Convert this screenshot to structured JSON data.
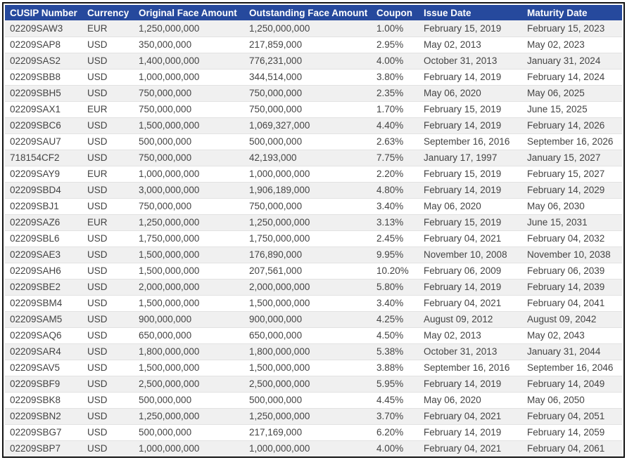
{
  "colors": {
    "header_bg": "#26499D",
    "header_text": "#FFFFFF",
    "row_bg": "#FFFFFF",
    "row_alt_bg": "#F0F0F0",
    "row_border": "#E2E2E2",
    "body_text": "#444444",
    "outer_border": "#141414"
  },
  "table": {
    "columns": [
      {
        "key": "cusip",
        "label": "CUSIP Number"
      },
      {
        "key": "currency",
        "label": "Currency"
      },
      {
        "key": "original_face",
        "label": "Original Face Amount"
      },
      {
        "key": "outstanding_face",
        "label": "Outstanding Face Amount"
      },
      {
        "key": "coupon",
        "label": "Coupon"
      },
      {
        "key": "issue_date",
        "label": "Issue Date"
      },
      {
        "key": "maturity_date",
        "label": "Maturity Date"
      }
    ],
    "rows": [
      [
        "02209SAW3",
        "EUR",
        "1,250,000,000",
        "1,250,000,000",
        "1.00%",
        "February 15, 2019",
        "February 15, 2023"
      ],
      [
        "02209SAP8",
        "USD",
        "350,000,000",
        "217,859,000",
        "2.95%",
        "May 02, 2013",
        "May 02, 2023"
      ],
      [
        "02209SAS2",
        "USD",
        "1,400,000,000",
        "776,231,000",
        "4.00%",
        "October 31, 2013",
        "January 31, 2024"
      ],
      [
        "02209SBB8",
        "USD",
        "1,000,000,000",
        "344,514,000",
        "3.80%",
        "February 14, 2019",
        "February 14, 2024"
      ],
      [
        "02209SBH5",
        "USD",
        "750,000,000",
        "750,000,000",
        "2.35%",
        "May 06, 2020",
        "May 06, 2025"
      ],
      [
        "02209SAX1",
        "EUR",
        "750,000,000",
        "750,000,000",
        "1.70%",
        "February 15, 2019",
        "June 15, 2025"
      ],
      [
        "02209SBC6",
        "USD",
        "1,500,000,000",
        "1,069,327,000",
        "4.40%",
        "February 14, 2019",
        "February 14, 2026"
      ],
      [
        "02209SAU7",
        "USD",
        "500,000,000",
        "500,000,000",
        "2.63%",
        "September 16, 2016",
        "September 16, 2026"
      ],
      [
        "718154CF2",
        "USD",
        "750,000,000",
        "42,193,000",
        "7.75%",
        "January 17, 1997",
        "January 15, 2027"
      ],
      [
        "02209SAY9",
        "EUR",
        "1,000,000,000",
        "1,000,000,000",
        "2.20%",
        "February 15, 2019",
        "February 15, 2027"
      ],
      [
        "02209SBD4",
        "USD",
        "3,000,000,000",
        "1,906,189,000",
        "4.80%",
        "February 14, 2019",
        "February 14, 2029"
      ],
      [
        "02209SBJ1",
        "USD",
        "750,000,000",
        "750,000,000",
        "3.40%",
        "May 06, 2020",
        "May 06, 2030"
      ],
      [
        "02209SAZ6",
        "EUR",
        "1,250,000,000",
        "1,250,000,000",
        "3.13%",
        "February 15, 2019",
        "June 15, 2031"
      ],
      [
        "02209SBL6",
        "USD",
        "1,750,000,000",
        "1,750,000,000",
        "2.45%",
        "February 04, 2021",
        "February 04, 2032"
      ],
      [
        "02209SAE3",
        "USD",
        "1,500,000,000",
        "176,890,000",
        "9.95%",
        "November 10, 2008",
        "November 10, 2038"
      ],
      [
        "02209SAH6",
        "USD",
        "1,500,000,000",
        "207,561,000",
        "10.20%",
        "February 06, 2009",
        "February 06, 2039"
      ],
      [
        "02209SBE2",
        "USD",
        "2,000,000,000",
        "2,000,000,000",
        "5.80%",
        "February 14, 2019",
        "February 14, 2039"
      ],
      [
        "02209SBM4",
        "USD",
        "1,500,000,000",
        "1,500,000,000",
        "3.40%",
        "February 04, 2021",
        "February 04, 2041"
      ],
      [
        "02209SAM5",
        "USD",
        "900,000,000",
        "900,000,000",
        "4.25%",
        "August 09, 2012",
        "August 09, 2042"
      ],
      [
        "02209SAQ6",
        "USD",
        "650,000,000",
        "650,000,000",
        "4.50%",
        "May 02, 2013",
        "May 02, 2043"
      ],
      [
        "02209SAR4",
        "USD",
        "1,800,000,000",
        "1,800,000,000",
        "5.38%",
        "October 31, 2013",
        "January 31, 2044"
      ],
      [
        "02209SAV5",
        "USD",
        "1,500,000,000",
        "1,500,000,000",
        "3.88%",
        "September 16, 2016",
        "September 16, 2046"
      ],
      [
        "02209SBF9",
        "USD",
        "2,500,000,000",
        "2,500,000,000",
        "5.95%",
        "February 14, 2019",
        "February 14, 2049"
      ],
      [
        "02209SBK8",
        "USD",
        "500,000,000",
        "500,000,000",
        "4.45%",
        "May 06, 2020",
        "May 06, 2050"
      ],
      [
        "02209SBN2",
        "USD",
        "1,250,000,000",
        "1,250,000,000",
        "3.70%",
        "February 04, 2021",
        "February 04, 2051"
      ],
      [
        "02209SBG7",
        "USD",
        "500,000,000",
        "217,169,000",
        "6.20%",
        "February 14, 2019",
        "February 14, 2059"
      ],
      [
        "02209SBP7",
        "USD",
        "1,000,000,000",
        "1,000,000,000",
        "4.00%",
        "February 04, 2021",
        "February 04, 2061"
      ]
    ]
  }
}
